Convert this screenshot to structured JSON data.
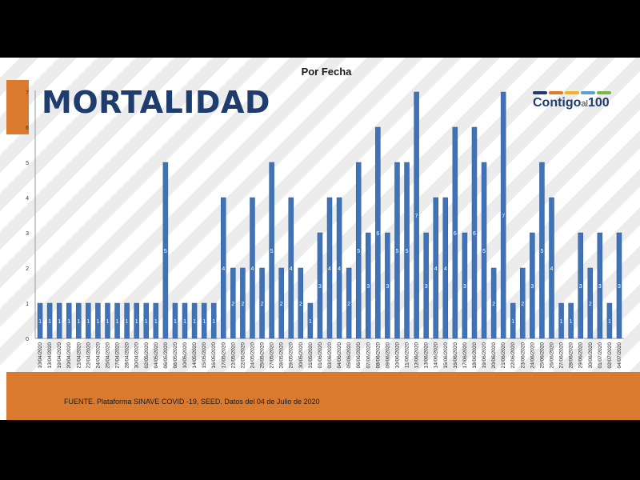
{
  "header": {
    "chart_title": "Por Fecha",
    "brand_title": "MORTALIDAD"
  },
  "logo": {
    "main": "Contigo",
    "small": "al",
    "number": "100",
    "bar_colors": [
      "#1f3c6e",
      "#e07b28",
      "#f0b427",
      "#5aa0d8",
      "#7ab648"
    ]
  },
  "footer": {
    "source": "FUENTE. Plataforma SINAVE COVID -19, SEED. Datos del 04 de Julio de 2020"
  },
  "colors": {
    "bar": "#3f72b7",
    "bar_edge": "#2c5a96",
    "accent": "#d97a2e",
    "brand": "#1f3c6e"
  },
  "chart_data": {
    "type": "bar",
    "title": "Por Fecha",
    "xlabel": "",
    "ylabel": "",
    "ylim": [
      0,
      7
    ],
    "yticks": [
      0,
      1,
      2,
      3,
      4,
      5,
      6,
      7
    ],
    "grid": false,
    "categories": [
      "10/04/2020",
      "13/04/2020",
      "19/04/2020",
      "20/04/2020",
      "21/04/2020",
      "22/04/2020",
      "24/04/2020",
      "25/04/2020",
      "27/04/2020",
      "28/04/2020",
      "30/04/2020",
      "02/05/2020",
      "04/05/2020",
      "06/05/2020",
      "08/05/2020",
      "10/05/2020",
      "14/05/2020",
      "15/05/2020",
      "16/05/2020",
      "17/05/2020",
      "21/05/2020",
      "22/05/2020",
      "24/05/2020",
      "25/05/2020",
      "27/05/2020",
      "28/05/2020",
      "29/05/2020",
      "30/05/2020",
      "31/05/2020",
      "01/06/2020",
      "03/06/2020",
      "04/06/2020",
      "05/06/2020",
      "06/06/2020",
      "07/06/2020",
      "08/06/2020",
      "09/06/2020",
      "10/06/2020",
      "11/06/2020",
      "12/06/2020",
      "13/06/2020",
      "14/06/2020",
      "15/06/2020",
      "16/06/2020",
      "17/06/2020",
      "18/06/2020",
      "19/06/2020",
      "20/06/2020",
      "21/06/2020",
      "22/06/2020",
      "23/06/2020",
      "24/06/2020",
      "25/06/2020",
      "26/06/2020",
      "27/06/2020",
      "28/06/2020",
      "29/06/2020",
      "30/06/2020",
      "01/07/2020",
      "02/07/2020",
      "04/07/2020"
    ],
    "values": [
      1,
      1,
      1,
      1,
      1,
      1,
      1,
      1,
      1,
      1,
      1,
      1,
      1,
      5,
      1,
      1,
      1,
      1,
      1,
      4,
      2,
      2,
      4,
      2,
      5,
      2,
      4,
      2,
      1,
      3,
      4,
      4,
      2,
      5,
      3,
      6,
      3,
      5,
      5,
      7,
      3,
      4,
      4,
      6,
      3,
      6,
      5,
      2,
      7,
      1,
      2,
      3,
      5,
      4,
      1,
      1,
      3,
      2,
      3,
      1,
      3
    ]
  }
}
